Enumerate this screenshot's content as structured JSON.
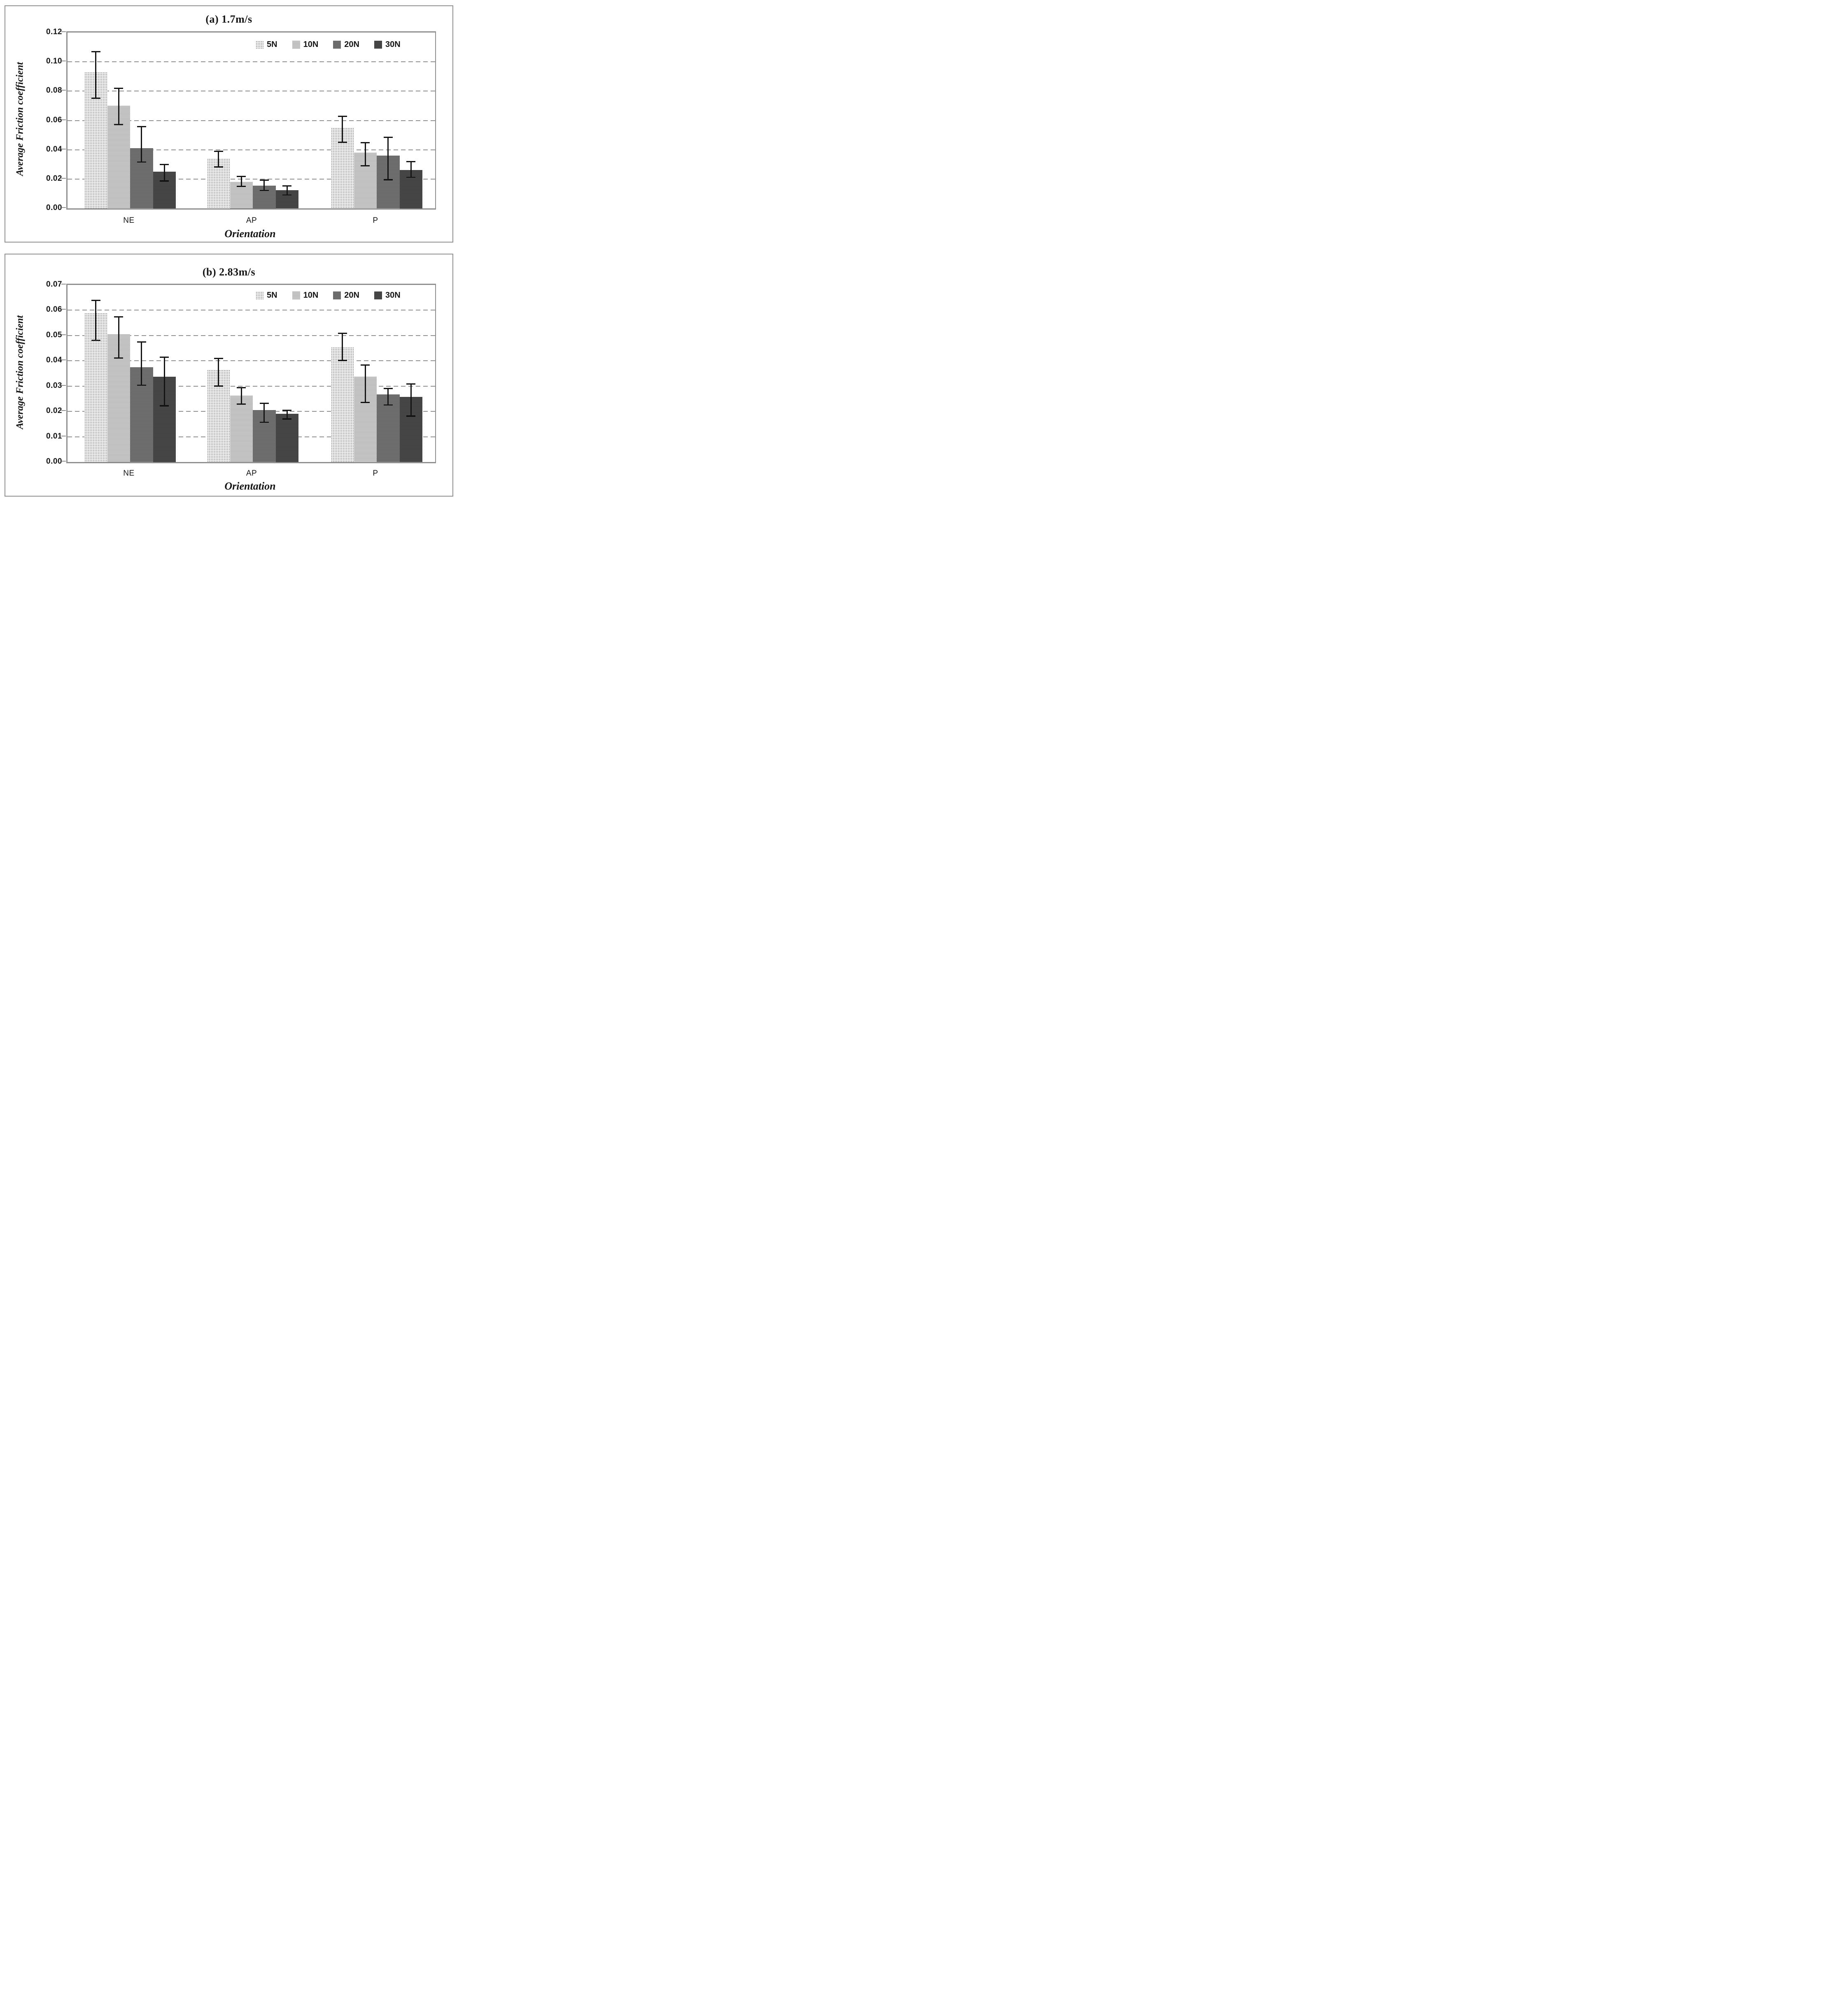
{
  "figure": {
    "description": "Two stacked panels of grouped bar charts with error bars showing average friction coefficient versus orientation for four normal loads",
    "colors": {
      "bar_5N": "#f3f3f3",
      "bar_10N": "#c4c4c4",
      "bar_20N": "#767676",
      "bar_30N": "#474747",
      "axis_line": "#8f8f8f",
      "gridline": "#909090",
      "error_bar": "#141414",
      "text": "#141414",
      "panel_border": "#8f8f8f",
      "background": "#ffffff"
    }
  },
  "chart_data": [
    {
      "id": "a",
      "type": "bar",
      "title": "(a) 1.7m/s",
      "xlabel": "Orientation",
      "ylabel": "Average Friction coefficient",
      "categories": [
        "NE",
        "AP",
        "P"
      ],
      "ylim": [
        0,
        0.12
      ],
      "ytick_step": 0.02,
      "ytick_labels": [
        "0.12",
        "0.10",
        "0.08",
        "0.06",
        "0.04",
        "0.02",
        "0.00"
      ],
      "grid": "horizontal-dashed",
      "legend": {
        "position": "top-right-inside",
        "labels": [
          "5N",
          "10N",
          "20N",
          "30N"
        ]
      },
      "error_bars": true,
      "series": [
        {
          "name": "5N",
          "values": [
            0.093,
            0.034,
            0.055
          ],
          "error_upper": [
            0.107,
            0.039,
            0.063
          ],
          "error_lower": [
            0.075,
            0.028,
            0.045
          ]
        },
        {
          "name": "10N",
          "values": [
            0.07,
            0.018,
            0.038
          ],
          "error_upper": [
            0.082,
            0.022,
            0.045
          ],
          "error_lower": [
            0.057,
            0.015,
            0.029
          ]
        },
        {
          "name": "20N",
          "values": [
            0.041,
            0.0155,
            0.036
          ],
          "error_upper": [
            0.056,
            0.0195,
            0.0485
          ],
          "error_lower": [
            0.0315,
            0.012,
            0.0195
          ]
        },
        {
          "name": "30N",
          "values": [
            0.025,
            0.0125,
            0.026
          ],
          "error_upper": [
            0.03,
            0.0155,
            0.032
          ],
          "error_lower": [
            0.0185,
            0.009,
            0.021
          ]
        }
      ]
    },
    {
      "id": "b",
      "type": "bar",
      "title": "(b) 2.83m/s",
      "xlabel": "Orientation",
      "ylabel": "Average Friction coefficient",
      "categories": [
        "NE",
        "AP",
        "P"
      ],
      "ylim": [
        0,
        0.07
      ],
      "ytick_step": 0.01,
      "ytick_labels": [
        "0.07",
        "0.06",
        "0.05",
        "0.04",
        "0.03",
        "0.02",
        "0.01",
        "0.00"
      ],
      "grid": "horizontal-dashed",
      "legend": {
        "position": "top-right-inside",
        "labels": [
          "5N",
          "10N",
          "20N",
          "30N"
        ]
      },
      "error_bars": true,
      "series": [
        {
          "name": "5N",
          "values": [
            0.059,
            0.0365,
            0.0455
          ],
          "error_upper": [
            0.064,
            0.041,
            0.051
          ],
          "error_lower": [
            0.048,
            0.03,
            0.04
          ]
        },
        {
          "name": "10N",
          "values": [
            0.0505,
            0.0262,
            0.0337
          ],
          "error_upper": [
            0.0575,
            0.0295,
            0.0385
          ],
          "error_lower": [
            0.041,
            0.0228,
            0.0235
          ]
        },
        {
          "name": "20N",
          "values": [
            0.0375,
            0.0205,
            0.0267
          ],
          "error_upper": [
            0.0475,
            0.0233,
            0.0292
          ],
          "error_lower": [
            0.0303,
            0.0157,
            0.0225
          ]
        },
        {
          "name": "30N",
          "values": [
            0.0337,
            0.019,
            0.0258
          ],
          "error_upper": [
            0.0415,
            0.0205,
            0.031
          ],
          "error_lower": [
            0.0222,
            0.017,
            0.018
          ]
        }
      ]
    }
  ]
}
